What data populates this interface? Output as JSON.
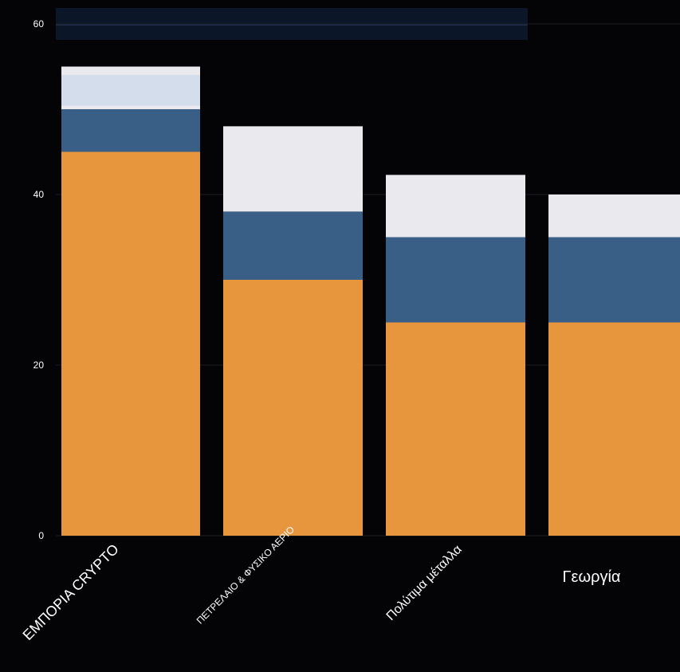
{
  "chart_data": {
    "type": "bar",
    "stacked": true,
    "categories": [
      "ΕΜΠΟΡΙΑ CRYPTO",
      "ΠΕΤΡΕΛΑΙΟ & ΦΥΣΙΚΟ ΑΕΡΙΟ",
      "Πολύτιμα μέταλλα",
      "Γεωργία"
    ],
    "series": [
      {
        "color": "#E8963E",
        "values": [
          45,
          30,
          25,
          25
        ]
      },
      {
        "color": "#3A5F86",
        "values": [
          5,
          8,
          10,
          10
        ]
      },
      {
        "color": "#E9E9EE",
        "values": [
          5,
          10,
          7.3,
          5
        ]
      }
    ],
    "top_segment_accent": {
      "category_index": 0,
      "color": "#D3DDEC"
    },
    "y_ticks": [
      0,
      20,
      40,
      60
    ],
    "ylim": [
      -4,
      62
    ],
    "grid": true,
    "background": "#040306",
    "tick_color": "#FFFFFF"
  }
}
